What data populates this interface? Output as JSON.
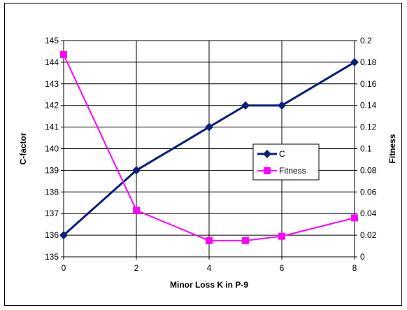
{
  "chart_data": {
    "type": "line",
    "title": "",
    "xlabel": "Minor Loss K in P-9",
    "ylabel": "C-factor",
    "y2label": "Fitness",
    "x": [
      0,
      2,
      4,
      5,
      6,
      8
    ],
    "xticks": [
      "0",
      "2",
      "4",
      "6",
      "8"
    ],
    "xlim": [
      0,
      8
    ],
    "ylim": [
      135,
      145
    ],
    "y2lim": [
      0,
      0.2
    ],
    "yticks": [
      "135",
      "136",
      "137",
      "138",
      "139",
      "140",
      "141",
      "142",
      "143",
      "144",
      "145"
    ],
    "y2ticks": [
      "0",
      "0.02",
      "0.04",
      "0.06",
      "0.08",
      "0.1",
      "0.12",
      "0.14",
      "0.16",
      "0.18",
      "0.2"
    ],
    "grid": true,
    "legend_position": "center-right",
    "series": [
      {
        "name": "C",
        "axis": "left",
        "color": "#0a1f7a",
        "marker": "diamond",
        "values": [
          136,
          139,
          141,
          142,
          142,
          144
        ]
      },
      {
        "name": "Fitness",
        "axis": "right",
        "color": "#ff00ff",
        "marker": "square",
        "values": [
          0.187,
          0.043,
          0.015,
          0.015,
          0.019,
          0.036
        ]
      }
    ]
  }
}
